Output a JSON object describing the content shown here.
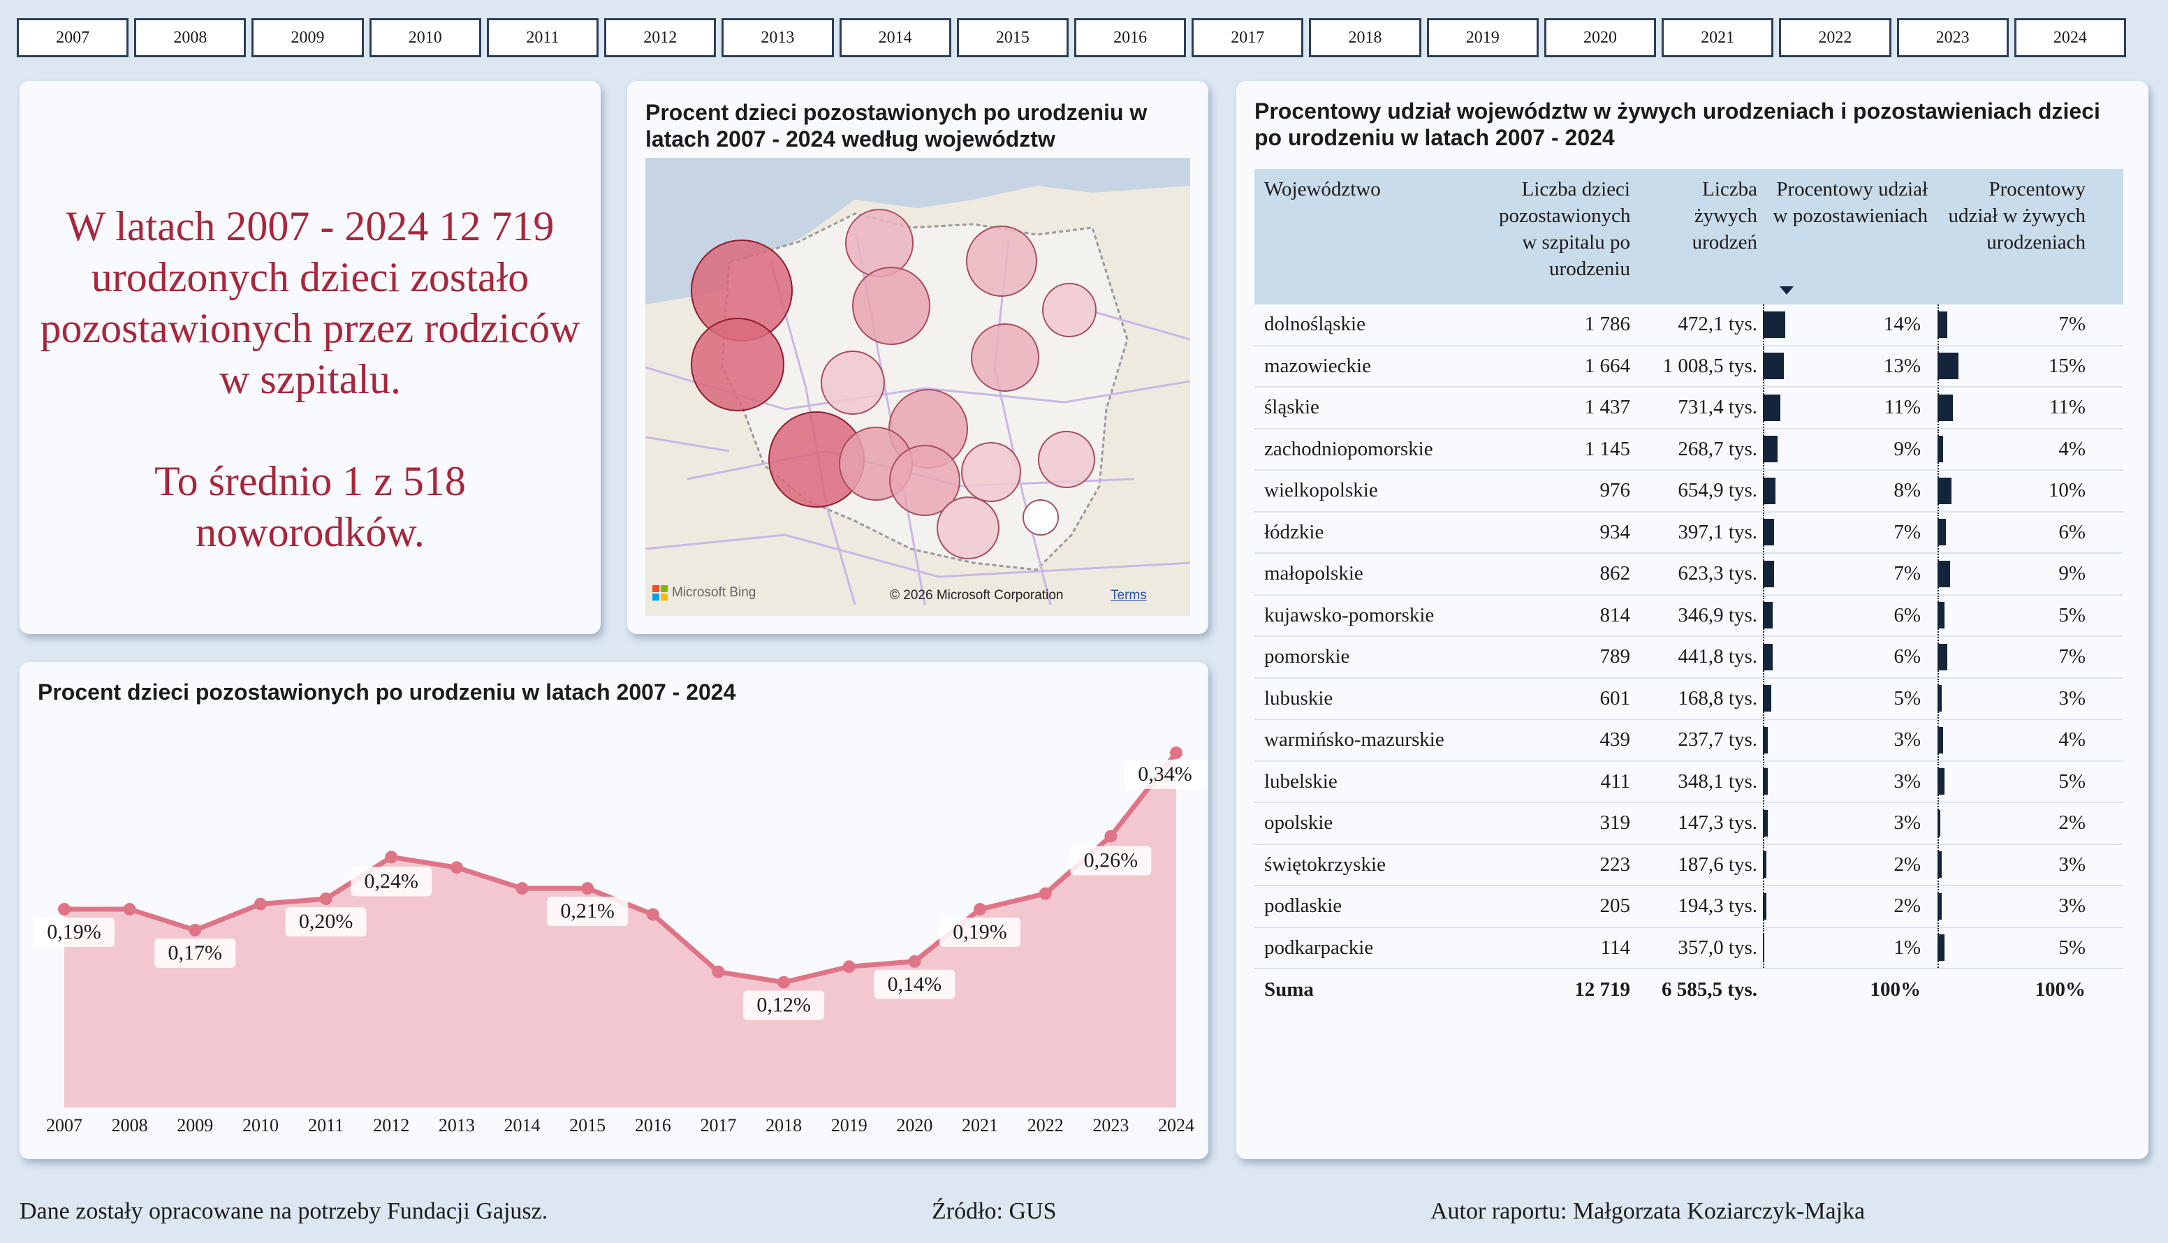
{
  "years": [
    "2007",
    "2008",
    "2009",
    "2010",
    "2011",
    "2012",
    "2013",
    "2014",
    "2015",
    "2016",
    "2017",
    "2018",
    "2019",
    "2020",
    "2021",
    "2022",
    "2023",
    "2024"
  ],
  "summary": {
    "line1": "W latach 2007 - 2024 12 719",
    "line2": "urodzonych dzieci zostało",
    "line3": "pozostawionych przez rodziców",
    "line4": "w szpitalu.",
    "line5": "To średnio 1 z 518",
    "line6": "noworodków."
  },
  "map": {
    "title_line1": "Procent dzieci pozostawionych po urodzeniu w",
    "title_line2": "latach 2007 - 2024 według województw",
    "logo_text": "Microsoft Bing",
    "copyright": "© 2026 Microsoft Corporation",
    "terms_link": "Terms",
    "colors": {
      "water": "#c7d4e4",
      "land": "#efeae0",
      "poland": "#f4f2ee",
      "roads": "#c9b6e6"
    }
  },
  "line_chart": {
    "title": "Procent dzieci pozostawionych po urodzeniu w latach 2007 - 2024"
  },
  "chart_data": {
    "type": "area",
    "title": "Procent dzieci pozostawionych po urodzeniu w latach 2007 - 2024",
    "xlabel": "",
    "ylabel": "",
    "x": [
      "2007",
      "2008",
      "2009",
      "2010",
      "2011",
      "2012",
      "2013",
      "2014",
      "2015",
      "2016",
      "2017",
      "2018",
      "2019",
      "2020",
      "2021",
      "2022",
      "2023",
      "2024"
    ],
    "values": [
      0.19,
      0.19,
      0.17,
      0.195,
      0.2,
      0.24,
      0.23,
      0.21,
      0.21,
      0.185,
      0.13,
      0.12,
      0.135,
      0.14,
      0.19,
      0.205,
      0.26,
      0.34
    ],
    "data_labels": [
      {
        "year": "2007",
        "text": "0,19%"
      },
      {
        "year": "2009",
        "text": "0,17%"
      },
      {
        "year": "2011",
        "text": "0,20%"
      },
      {
        "year": "2012",
        "text": "0,24%"
      },
      {
        "year": "2015",
        "text": "0,21%"
      },
      {
        "year": "2018",
        "text": "0,12%"
      },
      {
        "year": "2020",
        "text": "0,14%"
      },
      {
        "year": "2021",
        "text": "0,19%"
      },
      {
        "year": "2023",
        "text": "0,26%"
      },
      {
        "year": "2024",
        "text": "0,34%"
      }
    ],
    "ylim": [
      0,
      0.36
    ],
    "grid": false,
    "colors": {
      "line": "#e07487",
      "fill": "#f2c7d0"
    }
  },
  "table": {
    "title_line1": "Procentowy udział województw w żywych urodzeniach i pozostawieniach dzieci",
    "title_line2": "po urodzeniu w latach 2007 - 2024",
    "headers": {
      "name": "Województwo",
      "left": "Liczba dzieci pozostawionych w szpitalu po urodzeniu",
      "live": "Liczba żywych urodzeń",
      "pct_left": "Procentowy udział w pozostawieniach",
      "pct_live": "Procentowy udział w żywych urodzeniach"
    },
    "rows": [
      {
        "name": "dolnośląskie",
        "left": "1 786",
        "live": "472,1 tys.",
        "pct_left": "14%",
        "pct_live": "7%",
        "pl": 14,
        "pv": 7
      },
      {
        "name": "mazowieckie",
        "left": "1 664",
        "live": "1 008,5 tys.",
        "pct_left": "13%",
        "pct_live": "15%",
        "pl": 13,
        "pv": 15
      },
      {
        "name": "śląskie",
        "left": "1 437",
        "live": "731,4 tys.",
        "pct_left": "11%",
        "pct_live": "11%",
        "pl": 11,
        "pv": 11
      },
      {
        "name": "zachodniopomorskie",
        "left": "1 145",
        "live": "268,7 tys.",
        "pct_left": "9%",
        "pct_live": "4%",
        "pl": 9,
        "pv": 4
      },
      {
        "name": "wielkopolskie",
        "left": "976",
        "live": "654,9 tys.",
        "pct_left": "8%",
        "pct_live": "10%",
        "pl": 8,
        "pv": 10
      },
      {
        "name": "łódzkie",
        "left": "934",
        "live": "397,1 tys.",
        "pct_left": "7%",
        "pct_live": "6%",
        "pl": 7,
        "pv": 6
      },
      {
        "name": "małopolskie",
        "left": "862",
        "live": "623,3 tys.",
        "pct_left": "7%",
        "pct_live": "9%",
        "pl": 7,
        "pv": 9
      },
      {
        "name": "kujawsko-pomorskie",
        "left": "814",
        "live": "346,9 tys.",
        "pct_left": "6%",
        "pct_live": "5%",
        "pl": 6,
        "pv": 5
      },
      {
        "name": "pomorskie",
        "left": "789",
        "live": "441,8 tys.",
        "pct_left": "6%",
        "pct_live": "7%",
        "pl": 6,
        "pv": 7
      },
      {
        "name": "lubuskie",
        "left": "601",
        "live": "168,8 tys.",
        "pct_left": "5%",
        "pct_live": "3%",
        "pl": 5,
        "pv": 3
      },
      {
        "name": "warmińsko-mazurskie",
        "left": "439",
        "live": "237,7 tys.",
        "pct_left": "3%",
        "pct_live": "4%",
        "pl": 3,
        "pv": 4
      },
      {
        "name": "lubelskie",
        "left": "411",
        "live": "348,1 tys.",
        "pct_left": "3%",
        "pct_live": "5%",
        "pl": 3,
        "pv": 5
      },
      {
        "name": "opolskie",
        "left": "319",
        "live": "147,3 tys.",
        "pct_left": "3%",
        "pct_live": "2%",
        "pl": 3,
        "pv": 2
      },
      {
        "name": "świętokrzyskie",
        "left": "223",
        "live": "187,6 tys.",
        "pct_left": "2%",
        "pct_live": "3%",
        "pl": 2,
        "pv": 3
      },
      {
        "name": "podlaskie",
        "left": "205",
        "live": "194,3 tys.",
        "pct_left": "2%",
        "pct_live": "3%",
        "pl": 2,
        "pv": 3
      },
      {
        "name": "podkarpackie",
        "left": "114",
        "live": "357,0 tys.",
        "pct_left": "1%",
        "pct_live": "5%",
        "pl": 1,
        "pv": 5
      }
    ],
    "total": {
      "name": "Suma",
      "left": "12 719",
      "live": "6 585,5 tys.",
      "pct_left": "100%",
      "pct_live": "100%"
    },
    "colors": {
      "bar": "#14243a",
      "header_bg": "#c9dcec"
    }
  },
  "footer": {
    "left": "Dane zostały opracowane na potrzeby Fundacji Gajusz.",
    "center": "Źródło: GUS",
    "right": "Autor raportu: Małgorzata Koziarczyk-Majka"
  }
}
